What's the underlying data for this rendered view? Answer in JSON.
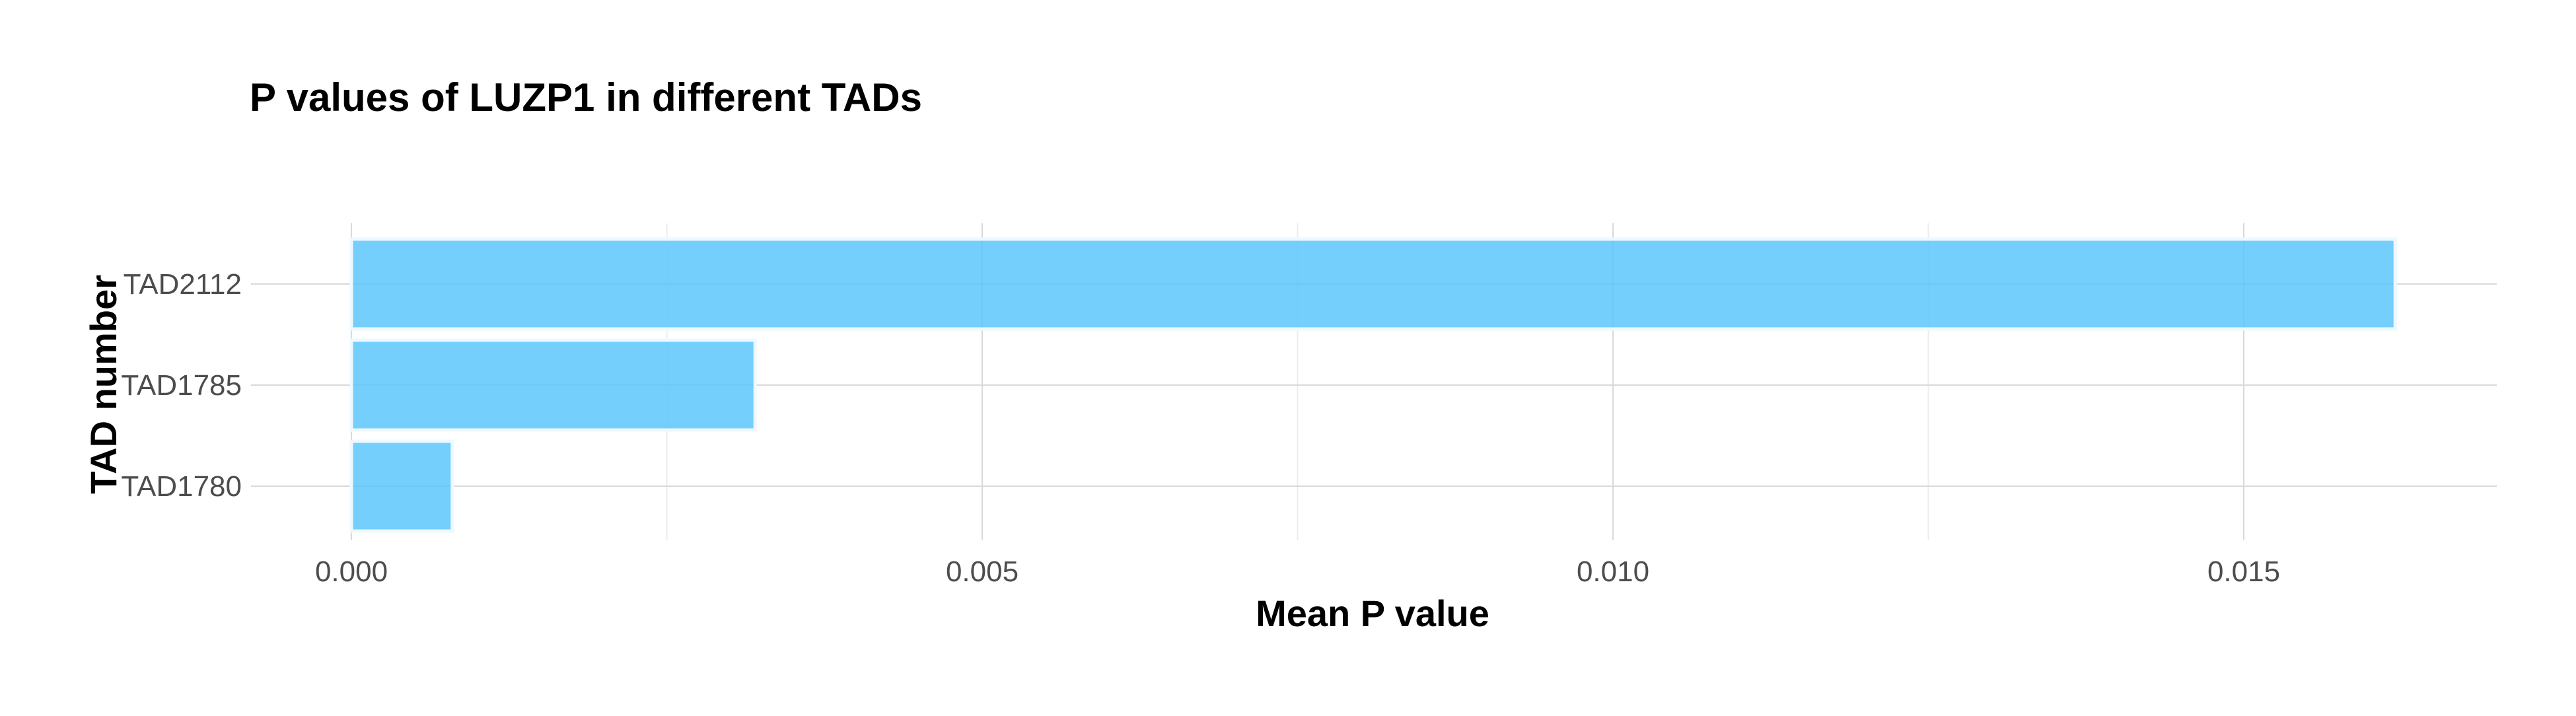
{
  "chart_data": {
    "type": "bar",
    "orientation": "horizontal",
    "title": "P values of LUZP1 in different TADs",
    "xlabel": "Mean P value",
    "ylabel": "TAD number",
    "categories": [
      "TAD2112",
      "TAD1785",
      "TAD1780"
    ],
    "values": [
      0.0162,
      0.0032,
      0.0008
    ],
    "xlim": [
      -0.0008,
      0.017
    ],
    "xticks": [
      0.0,
      0.005,
      0.01,
      0.015
    ],
    "xtick_labels": [
      "0.000",
      "0.005",
      "0.010",
      "0.015"
    ],
    "bar_color": "#56C4FB",
    "grid": true,
    "legend": "none"
  }
}
